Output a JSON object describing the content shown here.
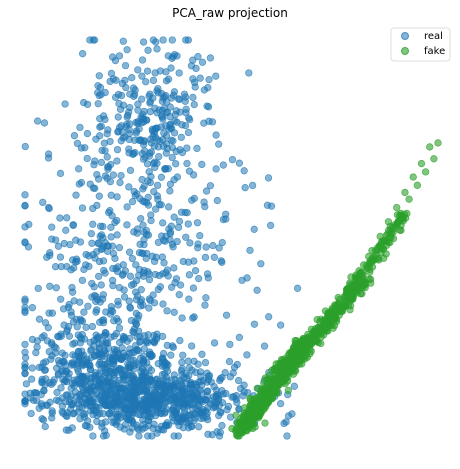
{
  "chart_data": {
    "type": "scatter",
    "title": "PCA_raw projection",
    "xlabel": "",
    "ylabel": "",
    "axes_visible": false,
    "grid": false,
    "xlim": [
      0,
      100
    ],
    "ylim": [
      0,
      100
    ],
    "legend": {
      "placement": "top-right",
      "entries": [
        "real",
        "fake"
      ]
    },
    "series": [
      {
        "name": "real",
        "color": "#1f77b4",
        "alpha": 0.55,
        "points": [
          [
            22.5,
            5.5
          ],
          [
            6.8,
            13.5
          ],
          [
            8.7,
            25.7
          ],
          [
            11.6,
            18.5
          ],
          [
            29.3,
            7.9
          ],
          [
            32.5,
            12.1
          ],
          [
            42.5,
            16.2
          ],
          [
            48.0,
            10.6
          ],
          [
            49.5,
            18.8
          ],
          [
            36.9,
            3.6
          ],
          [
            10.5,
            32.5
          ],
          [
            6.0,
            37.8
          ],
          [
            13.9,
            39.3
          ],
          [
            16.2,
            35.1
          ],
          [
            12.6,
            44.1
          ],
          [
            9.5,
            48.6
          ],
          [
            18.5,
            47.1
          ],
          [
            24.3,
            41.7
          ],
          [
            28.3,
            46.2
          ],
          [
            39.8,
            40.7
          ],
          [
            43.8,
            34.9
          ],
          [
            45.5,
            48.1
          ],
          [
            37.4,
            54.2
          ],
          [
            29.9,
            58.3
          ],
          [
            23.0,
            64.0
          ],
          [
            15.8,
            63.6
          ],
          [
            10.1,
            55.1
          ],
          [
            12.7,
            73.9
          ],
          [
            19.9,
            76.3
          ],
          [
            26.9,
            79.2
          ],
          [
            33.3,
            82.2
          ],
          [
            38.6,
            86.3
          ],
          [
            43.3,
            79.0
          ],
          [
            46.9,
            73.7
          ],
          [
            51.9,
            68.9
          ],
          [
            53.3,
            62.7
          ],
          [
            55.5,
            52.2
          ],
          [
            57.1,
            43.5
          ],
          [
            56.2,
            36.8
          ],
          [
            59.0,
            30.1
          ],
          [
            58.0,
            22.7
          ],
          [
            61.9,
            28.0
          ],
          [
            66.0,
            37.3
          ],
          [
            17.6,
            86.7
          ],
          [
            21.9,
            94.8
          ],
          [
            29.8,
            97.4
          ],
          [
            34.7,
            96.0
          ],
          [
            40.3,
            93.5
          ],
          [
            31.1,
            89.8
          ],
          [
            24.4,
            88.0
          ],
          [
            14.2,
            84.2
          ],
          [
            5.7,
            70.2
          ],
          [
            8.6,
            66.3
          ],
          [
            4.3,
            59.0
          ],
          [
            6.0,
            45.6
          ],
          [
            3.5,
            29.5
          ],
          [
            1.8,
            32.4
          ],
          [
            3.0,
            24.0
          ],
          [
            5.0,
            18.7
          ],
          [
            14.4,
            24.5
          ],
          [
            19.5,
            20.8
          ],
          [
            24.9,
            18.2
          ],
          [
            30.8,
            20.3
          ],
          [
            37.5,
            24.1
          ],
          [
            45.9,
            23.5
          ],
          [
            51.9,
            24.9
          ],
          [
            48.8,
            30.5
          ],
          [
            34.4,
            31.6
          ],
          [
            26.7,
            28.8
          ],
          [
            20.7,
            30.8
          ],
          [
            32.3,
            48.9
          ],
          [
            33.9,
            67.5
          ],
          [
            39.2,
            72.7
          ],
          [
            44.9,
            63.2
          ],
          [
            48.6,
            56.0
          ],
          [
            21.1,
            55.6
          ],
          [
            16.7,
            68.5
          ],
          [
            25.2,
            71.5
          ],
          [
            31.0,
            75.6
          ],
          [
            41.0,
            60.0
          ]
        ],
        "dense_regions": [
          {
            "center": [
              30.0,
              9.0
            ],
            "spread": [
              12.5,
              4.0
            ],
            "count": 700
          },
          {
            "center": [
              20.0,
              18.0
            ],
            "spread": [
              10.5,
              5.5
            ],
            "count": 380
          },
          {
            "center": [
              26.0,
              44.0
            ],
            "spread": [
              12.0,
              12.0
            ],
            "count": 300
          },
          {
            "center": [
              30.0,
              78.0
            ],
            "spread": [
              9.5,
              11.0
            ],
            "count": 300
          }
        ]
      },
      {
        "name": "fake",
        "color": "#2ca02c",
        "alpha": 0.6,
        "points": [
          [
            53.0,
            2.5
          ],
          [
            55.0,
            4.5
          ],
          [
            57.0,
            6.5
          ],
          [
            59.0,
            8.6
          ],
          [
            61.0,
            10.9
          ],
          [
            63.0,
            13.2
          ],
          [
            65.0,
            15.6
          ],
          [
            67.0,
            18.2
          ],
          [
            69.0,
            20.8
          ],
          [
            71.0,
            23.6
          ],
          [
            73.0,
            26.5
          ],
          [
            75.0,
            29.5
          ],
          [
            77.0,
            32.6
          ],
          [
            79.0,
            35.8
          ],
          [
            81.0,
            39.1
          ],
          [
            83.0,
            42.4
          ],
          [
            85.0,
            45.8
          ],
          [
            87.0,
            49.2
          ],
          [
            89.0,
            52.7
          ],
          [
            91.0,
            56.2
          ],
          [
            93.0,
            59.8
          ],
          [
            95.0,
            63.3
          ],
          [
            97.0,
            66.7
          ],
          [
            99.0,
            70.0
          ],
          [
            100.0,
            74.0
          ],
          [
            98.0,
            73.0
          ],
          [
            96.0,
            68.8
          ],
          [
            94.0,
            65.4
          ],
          [
            92.0,
            61.5
          ],
          [
            90.0,
            57.7
          ],
          [
            88.0,
            54.1
          ],
          [
            86.0,
            50.4
          ],
          [
            84.0,
            46.8
          ],
          [
            82.0,
            43.2
          ],
          [
            80.0,
            40.1
          ],
          [
            78.0,
            36.8
          ],
          [
            76.0,
            33.5
          ],
          [
            74.0,
            30.3
          ],
          [
            72.0,
            27.3
          ],
          [
            70.0,
            24.3
          ],
          [
            68.0,
            21.5
          ],
          [
            66.0,
            18.8
          ],
          [
            64.0,
            16.1
          ],
          [
            62.0,
            13.6
          ],
          [
            60.0,
            11.3
          ],
          [
            58.0,
            9.1
          ],
          [
            56.0,
            7.1
          ],
          [
            54.0,
            5.2
          ],
          [
            52.0,
            3.2
          ],
          [
            51.0,
            1.3
          ]
        ],
        "dense_regions": [
          {
            "from": [
              52.0,
              1.0
            ],
            "to": [
              68.0,
              24.0
            ],
            "width": 2.5,
            "count": 500
          },
          {
            "from": [
              66.0,
              20.0
            ],
            "to": [
              82.0,
              40.0
            ],
            "width": 2.0,
            "count": 300
          },
          {
            "from": [
              80.0,
              38.0
            ],
            "to": [
              92.0,
              56.0
            ],
            "width": 1.5,
            "count": 90
          }
        ]
      }
    ]
  }
}
